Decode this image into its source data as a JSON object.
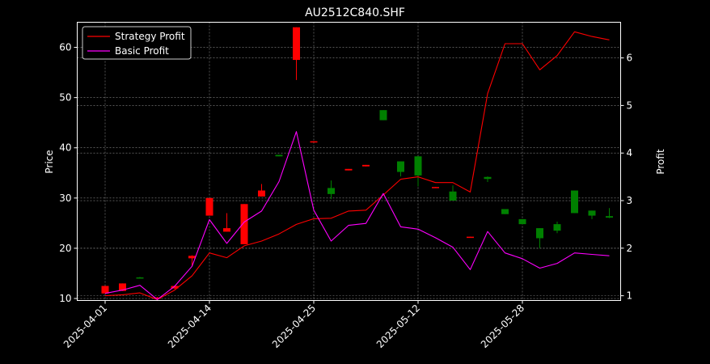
{
  "chart_data": {
    "type": "candlestick+line",
    "title": "AU2512C840.SHF",
    "ylabel_left": "Price",
    "ylabel_right": "Profit",
    "ylim_left": [
      9.6,
      65
    ],
    "ylim_right": [
      0.9,
      6.75
    ],
    "yticks_left": [
      "10",
      "20",
      "30",
      "40",
      "50",
      "60"
    ],
    "yticks_right": [
      "1",
      "2",
      "3",
      "4",
      "5",
      "6"
    ],
    "xticks": [
      {
        "label": "2025-04-01",
        "index": 0
      },
      {
        "label": "2025-04-14",
        "index": 6
      },
      {
        "label": "2025-04-25",
        "index": 12
      },
      {
        "label": "2025-05-12",
        "index": 18
      },
      {
        "label": "2025-05-28",
        "index": 24
      }
    ],
    "grid": true,
    "legend_position": "top-left",
    "colors": {
      "up": "#008000",
      "down": "#ff0000",
      "strategy": "#ff0000",
      "basic": "#ff00ff",
      "grid": "#888888"
    },
    "candles": [
      {
        "open": 12.5,
        "close": 11.0,
        "high": 12.5,
        "low": 11.0
      },
      {
        "open": 13.0,
        "close": 11.5,
        "high": 13.0,
        "low": 11.5
      },
      {
        "open": 14.0,
        "close": 14.2,
        "high": 14.3,
        "low": 14.0
      },
      {
        "open": 10.2,
        "close": 10.0,
        "high": 10.3,
        "low": 9.8
      },
      {
        "open": 12.5,
        "close": 12.0,
        "high": 12.6,
        "low": 11.9
      },
      {
        "open": 18.5,
        "close": 18.0,
        "high": 18.6,
        "low": 16.5
      },
      {
        "open": 30.0,
        "close": 26.5,
        "high": 30.0,
        "low": 26.5
      },
      {
        "open": 24.0,
        "close": 23.3,
        "high": 27.0,
        "low": 23.3
      },
      {
        "open": 28.8,
        "close": 20.8,
        "high": 28.8,
        "low": 20.8
      },
      {
        "open": 31.5,
        "close": 30.3,
        "high": 32.8,
        "low": 30.3
      },
      {
        "open": 38.3,
        "close": 38.6,
        "high": 38.6,
        "low": 38.3
      },
      {
        "open": 64.0,
        "close": 57.5,
        "high": 64.0,
        "low": 53.5
      },
      {
        "open": 41.3,
        "close": 41.1,
        "high": 41.3,
        "low": 41.1
      },
      {
        "open": 30.8,
        "close": 32.0,
        "high": 33.5,
        "low": 29.8
      },
      {
        "open": 35.8,
        "close": 35.5,
        "high": 35.8,
        "low": 35.5
      },
      {
        "open": 36.6,
        "close": 36.3,
        "high": 36.6,
        "low": 36.3
      },
      {
        "open": 45.5,
        "close": 47.5,
        "high": 47.5,
        "low": 45.5
      },
      {
        "open": 35.2,
        "close": 37.3,
        "high": 37.3,
        "low": 34.3
      },
      {
        "open": 34.5,
        "close": 38.3,
        "high": 38.3,
        "low": 32.3
      },
      {
        "open": 32.2,
        "close": 32.1,
        "high": 32.2,
        "low": 32.1
      },
      {
        "open": 29.5,
        "close": 31.3,
        "high": 32.5,
        "low": 29.5
      },
      {
        "open": 22.3,
        "close": 22.1,
        "high": 22.3,
        "low": 22.1
      },
      {
        "open": 33.8,
        "close": 34.2,
        "high": 34.3,
        "low": 33.2
      },
      {
        "open": 26.8,
        "close": 27.8,
        "high": 27.8,
        "low": 26.8
      },
      {
        "open": 24.8,
        "close": 25.8,
        "high": 25.8,
        "low": 24.8
      },
      {
        "open": 22.0,
        "close": 24.0,
        "high": 24.0,
        "low": 20.0
      },
      {
        "open": 23.5,
        "close": 24.8,
        "high": 25.3,
        "low": 23.0
      },
      {
        "open": 27.0,
        "close": 31.5,
        "high": 31.5,
        "low": 27.0
      },
      {
        "open": 26.5,
        "close": 27.5,
        "high": 27.5,
        "low": 25.8
      },
      {
        "open": 26.1,
        "close": 26.4,
        "high": 28.0,
        "low": 26.0
      }
    ],
    "series": [
      {
        "name": "Strategy Profit",
        "color": "#ff0000",
        "values": [
          1.0,
          1.02,
          1.06,
          0.92,
          1.12,
          1.42,
          1.9,
          1.8,
          2.05,
          2.15,
          2.3,
          2.5,
          2.62,
          2.63,
          2.78,
          2.8,
          3.12,
          3.45,
          3.5,
          3.38,
          3.38,
          3.18,
          5.25,
          6.3,
          6.3,
          5.75,
          6.05,
          6.55,
          6.45,
          6.38
        ]
      },
      {
        "name": "Basic Profit",
        "color": "#ff00ff",
        "values": [
          1.05,
          1.12,
          1.22,
          0.92,
          1.2,
          1.62,
          2.6,
          2.1,
          2.55,
          2.78,
          3.4,
          4.45,
          2.8,
          2.15,
          2.48,
          2.52,
          3.15,
          2.45,
          2.4,
          2.22,
          2.02,
          1.55,
          2.35,
          1.9,
          1.78,
          1.58,
          1.68,
          1.9,
          1.87,
          1.84
        ]
      }
    ]
  }
}
